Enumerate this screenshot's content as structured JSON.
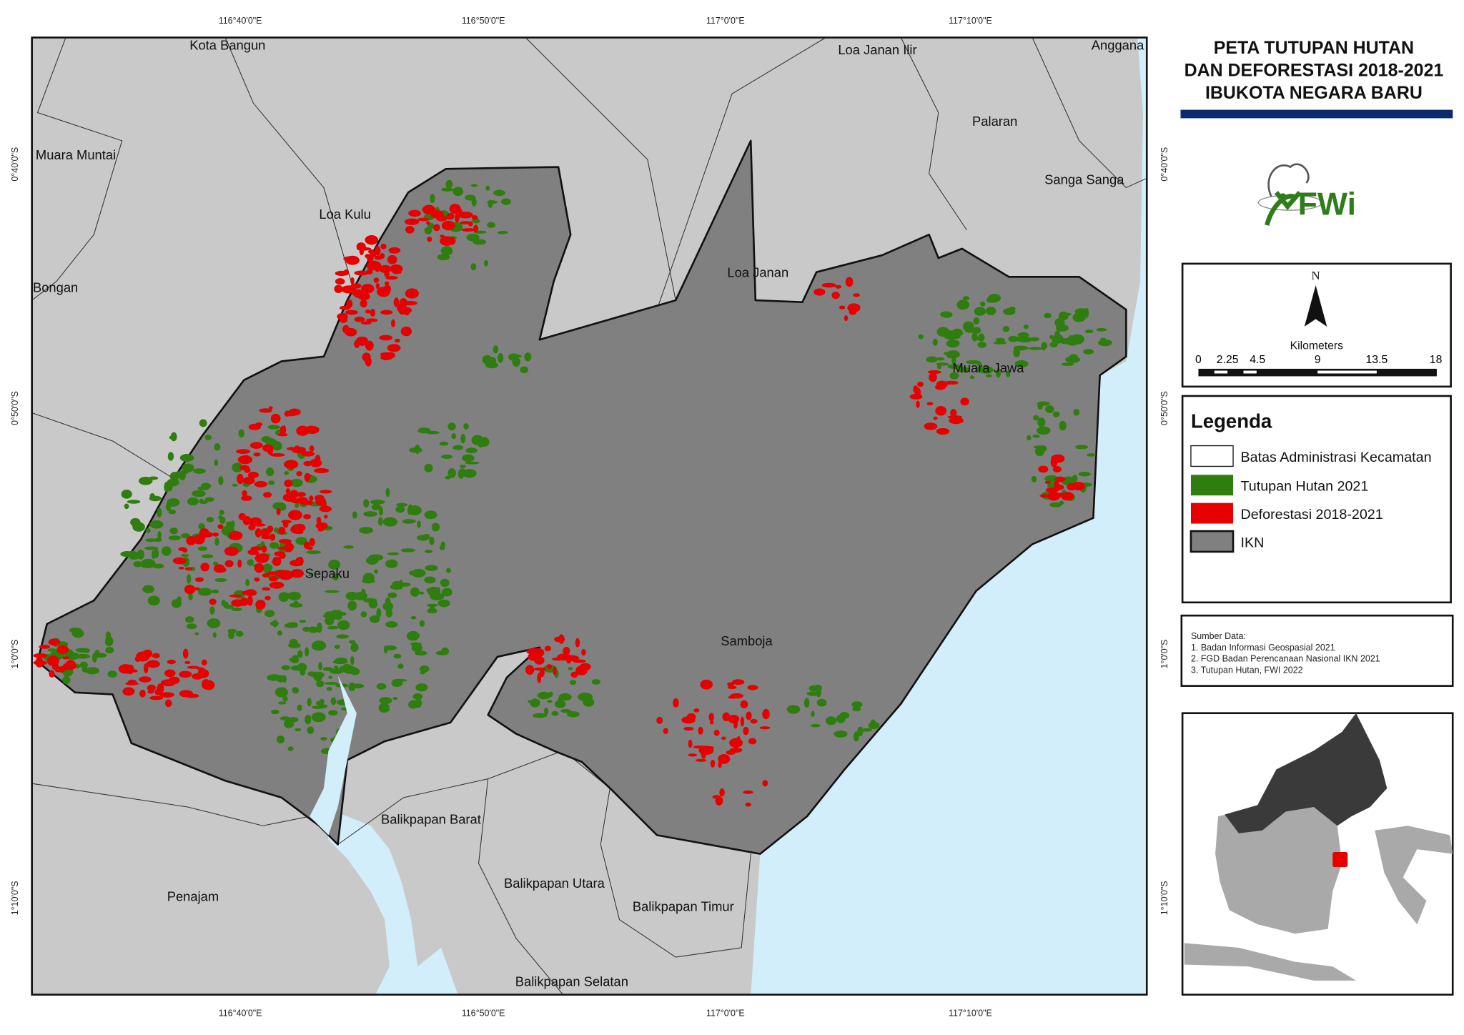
{
  "title": {
    "line1": "PETA TUTUPAN HUTAN",
    "line2": "DAN DEFORESTASI 2018-2021",
    "line3": "IBUKOTA NEGARA BARU",
    "bar_color": "#0b2a6b"
  },
  "logo": {
    "text": "FWi",
    "color": "#2e7d1a"
  },
  "north_arrow": {
    "label": "N"
  },
  "scale_bar": {
    "unit": "Kilometers",
    "ticks": [
      "0",
      "2.25",
      "4.5",
      "9",
      "13.5",
      "18"
    ]
  },
  "legend": {
    "title": "Legenda",
    "items": [
      {
        "label": "Batas Administrasi Kecamatan",
        "color": "#ffffff"
      },
      {
        "label": "Tutupan Hutan 2021",
        "color": "#2e7d0e"
      },
      {
        "label": "Deforestasi 2018-2021",
        "color": "#e60000"
      },
      {
        "label": "IKN",
        "color": "#808080"
      }
    ]
  },
  "sources": {
    "heading": "Sumber Data:",
    "items": [
      "1. Badan Informasi Geospasial 2021",
      "2. FGD Badan Perencanaan Nasional IKN 2021",
      "3. Tutupan Hutan, FWI 2022"
    ]
  },
  "graticule": {
    "lon": [
      "116°40'0\"E",
      "116°50'0\"E",
      "117°0'0\"E",
      "117°10'0\"E"
    ],
    "lat": [
      "0°40'0\"S",
      "0°50'0\"S",
      "1°0'0\"S",
      "1°10'0\"S"
    ]
  },
  "places": [
    "Kota Bangun",
    "Loa Janan Ilir",
    "Anggana",
    "Muara Muntai",
    "Palaran",
    "Sanga Sanga",
    "Loa Kulu",
    "Bongan",
    "Loa Janan",
    "Muara Jawa",
    "Sepaku",
    "Samboja",
    "Balikpapan Barat",
    "Penajam",
    "Balikpapan Utara",
    "Balikpapan Timur",
    "Balikpapan Selatan"
  ],
  "colors": {
    "land": "#c9c9c9",
    "sea": "#d2eefb",
    "ikn": "#808080",
    "forest": "#2e7d0e",
    "deforestation": "#e60000"
  }
}
